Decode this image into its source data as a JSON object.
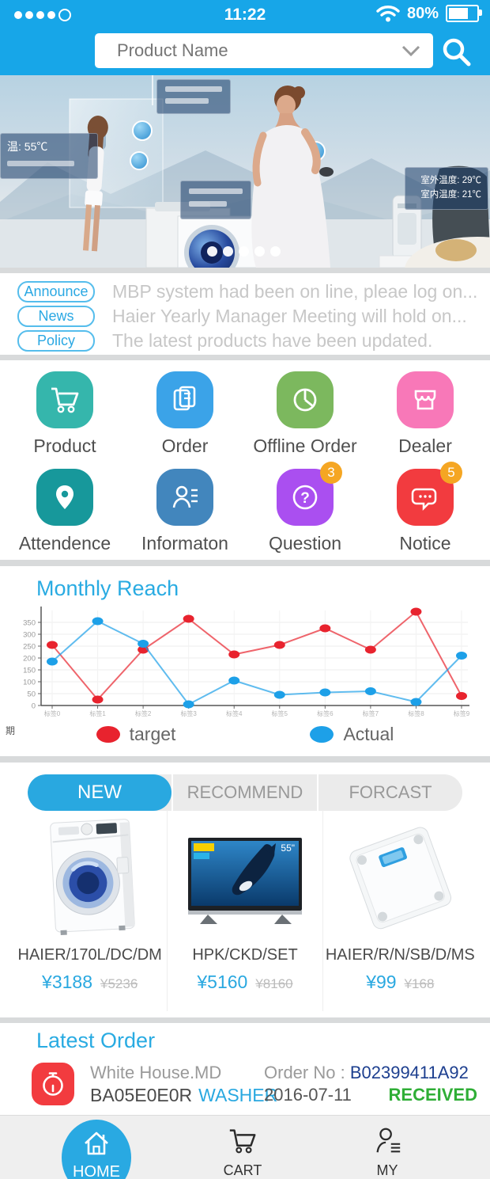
{
  "status_bar": {
    "time": "11:22",
    "battery_percent": "80%",
    "signal_icon": "four-dots-one-ring",
    "wifi_icon": "wifi",
    "battery_icon": "battery-80"
  },
  "search": {
    "placeholder": "Product Name"
  },
  "hero": {
    "description": "smart-home banner photo with two women, smart mirror, washing machine and appliance callouts",
    "callouts": {
      "left": "温: 55℃",
      "outdoor": "室外温度: 29℃",
      "indoor": "室内温度: 21℃"
    },
    "carousel_dot_count": 5
  },
  "announcements": {
    "items": [
      {
        "tag": "Announce",
        "text": "MBP system had been on line, pleae log on..."
      },
      {
        "tag": "News",
        "text": "Haier Yearly Manager Meeting will hold on..."
      },
      {
        "tag": "Policy",
        "text": "The latest products have been updated."
      }
    ]
  },
  "grid": {
    "badge_color": "#f5a623",
    "items": [
      {
        "label": "Product",
        "icon": "cart-icon",
        "color": "#35b6ac"
      },
      {
        "label": "Order",
        "icon": "documents-icon",
        "color": "#3ba3e8"
      },
      {
        "label": "Offline Order",
        "icon": "pie-chart-icon",
        "color": "#7cb85e"
      },
      {
        "label": "Dealer",
        "icon": "storefront-icon",
        "color": "#f878b8"
      },
      {
        "label": "Attendence",
        "icon": "location-pin-icon",
        "color": "#17989b"
      },
      {
        "label": "Informaton",
        "icon": "contact-person-icon",
        "color": "#4286bd"
      },
      {
        "label": "Question",
        "icon": "question-mark-icon",
        "color": "#aa4ff0",
        "badge": "3"
      },
      {
        "label": "Notice",
        "icon": "chat-bubbles-icon",
        "color": "#f23b3f",
        "badge": "5"
      }
    ]
  },
  "chart_data": {
    "type": "line",
    "title": "Monthly Reach",
    "categories": [
      "标签0",
      "标签1",
      "标签2",
      "标签3",
      "标签4",
      "标签5",
      "标签6",
      "标签7",
      "标签8",
      "标签9"
    ],
    "series": [
      {
        "name": "target",
        "color": "#e8232e",
        "values": [
          255,
          25,
          235,
          365,
          215,
          255,
          325,
          235,
          395,
          40
        ]
      },
      {
        "name": "Actual",
        "color": "#1da0e8",
        "values": [
          185,
          355,
          260,
          5,
          105,
          45,
          55,
          60,
          15,
          210
        ]
      }
    ],
    "ylim": [
      0,
      400
    ],
    "yticks": [
      0,
      50,
      100,
      150,
      200,
      250,
      300,
      350
    ],
    "grid": true,
    "legend_position": "bottom",
    "axis_note": "期"
  },
  "tabs": {
    "items": [
      {
        "label": "NEW",
        "active": true
      },
      {
        "label": "RECOMMEND",
        "active": false
      },
      {
        "label": "FORCAST",
        "active": false
      }
    ]
  },
  "products": {
    "items": [
      {
        "name": "HAIER/170L/DC/DM",
        "price": "¥3188",
        "old_price": "¥5236",
        "image": "washing-machine"
      },
      {
        "name": "HPK/CKD/SET",
        "price": "¥5160",
        "old_price": "¥8160",
        "image": "tv-with-orca",
        "screen_size": "55\""
      },
      {
        "name": "HAIER/R/N/SB/D/MS",
        "price": "¥99",
        "old_price": "¥168",
        "image": "body-scale"
      }
    ]
  },
  "latest_order": {
    "title": "Latest Order",
    "dealer": "White House.MD",
    "product_code": "BA05E0E0R",
    "product_type": "WASHER",
    "order_no_label": "Order No :",
    "order_no": "B02399411A92",
    "date": "2016-07-11",
    "status": "RECEIVED",
    "status_color": "#2fae36"
  },
  "bottom_nav": {
    "items": [
      {
        "label": "HOME",
        "icon": "home-icon",
        "active": true
      },
      {
        "label": "CART",
        "icon": "cart-icon",
        "active": false
      },
      {
        "label": "MY",
        "icon": "person-icon",
        "active": false
      }
    ]
  },
  "colors": {
    "primary_blue": "#17a6e8",
    "accent_blue": "#29a8e0",
    "chart_title_blue": "#29abe2",
    "order_no_navy": "#1d3f8f",
    "received_green": "#2fae36",
    "badge_orange": "#f5a623"
  }
}
